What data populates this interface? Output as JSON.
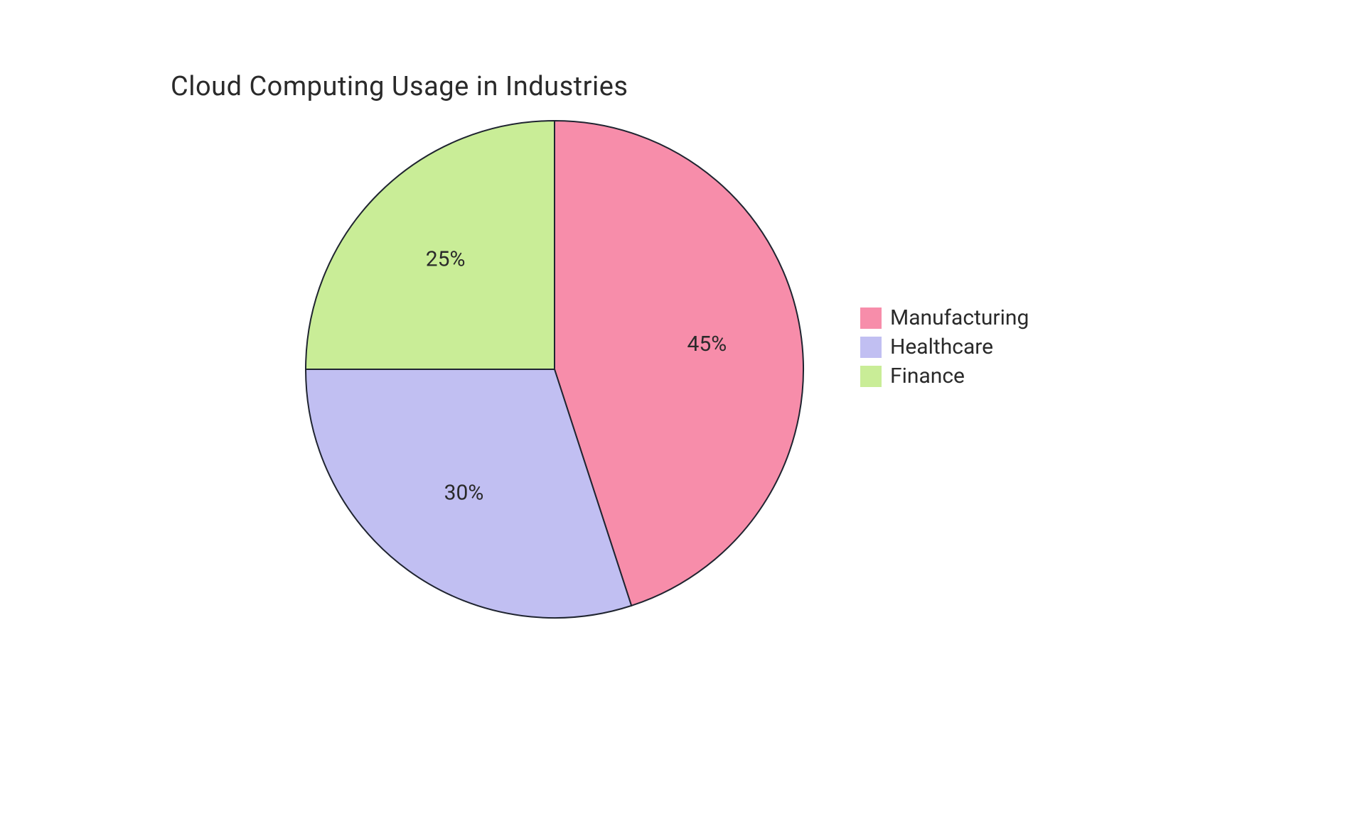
{
  "chart": {
    "type": "pie",
    "title": "Cloud Computing Usage in Industries",
    "title_fontsize": 38,
    "title_color": "#2a2a2a",
    "background_color": "#ffffff",
    "stroke_color": "#1f2430",
    "stroke_width": 2,
    "label_fontsize": 30,
    "label_color": "#2a2a2a",
    "label_radius_ratio": 0.62,
    "radius": 350,
    "start_angle_deg": 0,
    "slices": [
      {
        "name": "Manufacturing",
        "value": 45,
        "label": "45%",
        "color": "#f78daa"
      },
      {
        "name": "Healthcare",
        "value": 30,
        "label": "30%",
        "color": "#c1bff2"
      },
      {
        "name": "Finance",
        "value": 25,
        "label": "25%",
        "color": "#c9ed97"
      }
    ],
    "legend": {
      "swatch_size": 30,
      "fontsize": 30
    }
  }
}
